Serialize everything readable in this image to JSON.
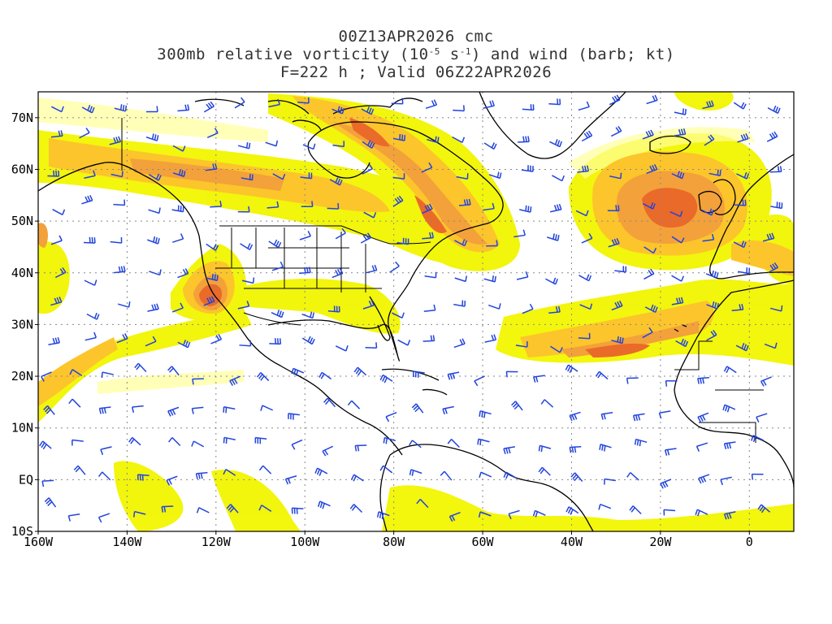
{
  "title": {
    "line1": "00Z13APR2026 cmc",
    "line2_pre": "300mb relative vorticity (10",
    "line2_exp1": "-5",
    "line2_mid": " s",
    "line2_exp2": "-1",
    "line2_post": ") and wind (barb; kt)",
    "line3": "F=222 h ; Valid 06Z22APR2026"
  },
  "map": {
    "lon_range": [
      -160,
      10
    ],
    "lat_range": [
      -10,
      75
    ],
    "lat_ticks": [
      {
        "value": 70,
        "label": "70N"
      },
      {
        "value": 60,
        "label": "60N"
      },
      {
        "value": 50,
        "label": "50N"
      },
      {
        "value": 40,
        "label": "40N"
      },
      {
        "value": 30,
        "label": "30N"
      },
      {
        "value": 20,
        "label": "20N"
      },
      {
        "value": 10,
        "label": "10N"
      },
      {
        "value": 0,
        "label": "EQ"
      },
      {
        "value": -10,
        "label": "10S"
      }
    ],
    "lon_ticks": [
      {
        "value": -160,
        "label": "160W"
      },
      {
        "value": -140,
        "label": "140W"
      },
      {
        "value": -120,
        "label": "120W"
      },
      {
        "value": -100,
        "label": "100W"
      },
      {
        "value": -80,
        "label": "80W"
      },
      {
        "value": -60,
        "label": "60W"
      },
      {
        "value": -40,
        "label": "40W"
      },
      {
        "value": -20,
        "label": "20W"
      },
      {
        "value": 0,
        "label": "0"
      }
    ],
    "grid": "dotted",
    "colors": {
      "shade_light": "#f5f500",
      "shade_light2": "#ffff9a",
      "shade_mid": "#fdc628",
      "shade_orange": "#f5a33a",
      "shade_dark": "#ef7a28",
      "shade_red": "#e85a28",
      "coast": "#000000",
      "barb": "#2244dd",
      "grid": "#888888"
    }
  }
}
